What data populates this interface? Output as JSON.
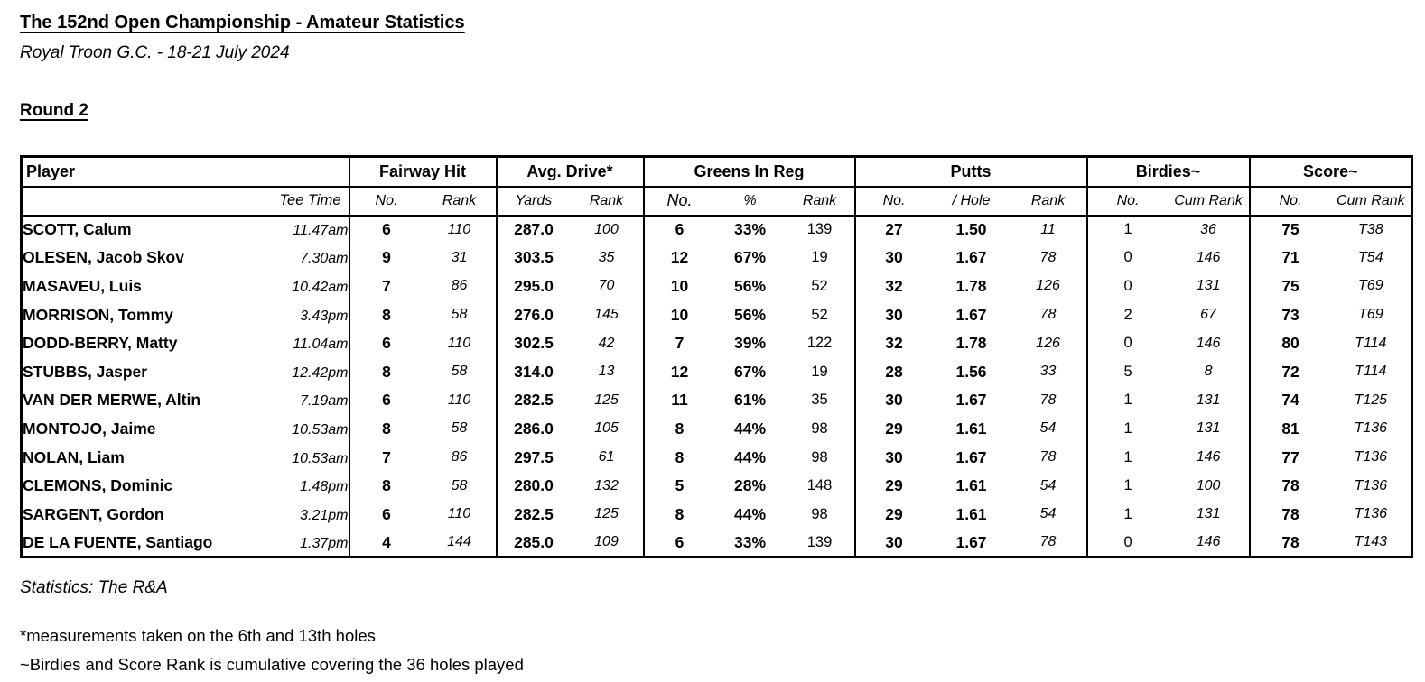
{
  "page": {
    "title": "The 152nd Open Championship - Amateur Statistics",
    "subtitle": "Royal Troon G.C. - 18-21 July 2024",
    "round_label": "Round 2",
    "source_note": "Statistics: The R&A",
    "footnote_drive": "*measurements taken on the 6th and 13th holes",
    "footnote_cumulative": "~Birdies and Score Rank is cumulative covering the 36 holes played"
  },
  "colors": {
    "text": "#000000",
    "border": "#000000",
    "background": "#ffffff"
  },
  "table": {
    "group_headers": {
      "player": "Player",
      "fairway_hit": "Fairway Hit",
      "avg_drive": "Avg. Drive*",
      "greens_in_reg": "Greens In Reg",
      "putts": "Putts",
      "birdies": "Birdies~",
      "score": "Score~"
    },
    "sub_headers": {
      "tee_time": "Tee Time",
      "fairway_no": "No.",
      "fairway_rank": "Rank",
      "drive_yards": "Yards",
      "drive_rank": "Rank",
      "gir_no": "No.",
      "gir_pct": "%",
      "gir_rank": "Rank",
      "putts_no": "No.",
      "putts_per_hole": "/ Hole",
      "putts_rank": "Rank",
      "birdies_no": "No.",
      "birdies_cum_rank": "Cum Rank",
      "score_no": "No.",
      "score_cum_rank": "Cum Rank"
    },
    "rows": [
      {
        "player": "SCOTT, Calum",
        "tee_time": "11.47am",
        "fairway_no": "6",
        "fairway_rank": "110",
        "drive_yards": "287.0",
        "drive_rank": "100",
        "gir_no": "6",
        "gir_pct": "33%",
        "gir_rank": "139",
        "putts_no": "27",
        "putts_per_hole": "1.50",
        "putts_rank": "11",
        "birdies_no": "1",
        "birdies_cum_rank": "36",
        "score_no": "75",
        "score_cum_rank": "T38"
      },
      {
        "player": "OLESEN, Jacob Skov",
        "tee_time": "7.30am",
        "fairway_no": "9",
        "fairway_rank": "31",
        "drive_yards": "303.5",
        "drive_rank": "35",
        "gir_no": "12",
        "gir_pct": "67%",
        "gir_rank": "19",
        "putts_no": "30",
        "putts_per_hole": "1.67",
        "putts_rank": "78",
        "birdies_no": "0",
        "birdies_cum_rank": "146",
        "score_no": "71",
        "score_cum_rank": "T54"
      },
      {
        "player": "MASAVEU, Luis",
        "tee_time": "10.42am",
        "fairway_no": "7",
        "fairway_rank": "86",
        "drive_yards": "295.0",
        "drive_rank": "70",
        "gir_no": "10",
        "gir_pct": "56%",
        "gir_rank": "52",
        "putts_no": "32",
        "putts_per_hole": "1.78",
        "putts_rank": "126",
        "birdies_no": "0",
        "birdies_cum_rank": "131",
        "score_no": "75",
        "score_cum_rank": "T69"
      },
      {
        "player": "MORRISON, Tommy",
        "tee_time": "3.43pm",
        "fairway_no": "8",
        "fairway_rank": "58",
        "drive_yards": "276.0",
        "drive_rank": "145",
        "gir_no": "10",
        "gir_pct": "56%",
        "gir_rank": "52",
        "putts_no": "30",
        "putts_per_hole": "1.67",
        "putts_rank": "78",
        "birdies_no": "2",
        "birdies_cum_rank": "67",
        "score_no": "73",
        "score_cum_rank": "T69"
      },
      {
        "player": "DODD-BERRY, Matty",
        "tee_time": "11.04am",
        "fairway_no": "6",
        "fairway_rank": "110",
        "drive_yards": "302.5",
        "drive_rank": "42",
        "gir_no": "7",
        "gir_pct": "39%",
        "gir_rank": "122",
        "putts_no": "32",
        "putts_per_hole": "1.78",
        "putts_rank": "126",
        "birdies_no": "0",
        "birdies_cum_rank": "146",
        "score_no": "80",
        "score_cum_rank": "T114"
      },
      {
        "player": "STUBBS, Jasper",
        "tee_time": "12.42pm",
        "fairway_no": "8",
        "fairway_rank": "58",
        "drive_yards": "314.0",
        "drive_rank": "13",
        "gir_no": "12",
        "gir_pct": "67%",
        "gir_rank": "19",
        "putts_no": "28",
        "putts_per_hole": "1.56",
        "putts_rank": "33",
        "birdies_no": "5",
        "birdies_cum_rank": "8",
        "score_no": "72",
        "score_cum_rank": "T114"
      },
      {
        "player": "VAN DER MERWE, Altin",
        "tee_time": "7.19am",
        "fairway_no": "6",
        "fairway_rank": "110",
        "drive_yards": "282.5",
        "drive_rank": "125",
        "gir_no": "11",
        "gir_pct": "61%",
        "gir_rank": "35",
        "putts_no": "30",
        "putts_per_hole": "1.67",
        "putts_rank": "78",
        "birdies_no": "1",
        "birdies_cum_rank": "131",
        "score_no": "74",
        "score_cum_rank": "T125"
      },
      {
        "player": "MONTOJO, Jaime",
        "tee_time": "10.53am",
        "fairway_no": "8",
        "fairway_rank": "58",
        "drive_yards": "286.0",
        "drive_rank": "105",
        "gir_no": "8",
        "gir_pct": "44%",
        "gir_rank": "98",
        "putts_no": "29",
        "putts_per_hole": "1.61",
        "putts_rank": "54",
        "birdies_no": "1",
        "birdies_cum_rank": "131",
        "score_no": "81",
        "score_cum_rank": "T136"
      },
      {
        "player": "NOLAN, Liam",
        "tee_time": "10.53am",
        "fairway_no": "7",
        "fairway_rank": "86",
        "drive_yards": "297.5",
        "drive_rank": "61",
        "gir_no": "8",
        "gir_pct": "44%",
        "gir_rank": "98",
        "putts_no": "30",
        "putts_per_hole": "1.67",
        "putts_rank": "78",
        "birdies_no": "1",
        "birdies_cum_rank": "146",
        "score_no": "77",
        "score_cum_rank": "T136"
      },
      {
        "player": "CLEMONS, Dominic",
        "tee_time": "1.48pm",
        "fairway_no": "8",
        "fairway_rank": "58",
        "drive_yards": "280.0",
        "drive_rank": "132",
        "gir_no": "5",
        "gir_pct": "28%",
        "gir_rank": "148",
        "putts_no": "29",
        "putts_per_hole": "1.61",
        "putts_rank": "54",
        "birdies_no": "1",
        "birdies_cum_rank": "100",
        "score_no": "78",
        "score_cum_rank": "T136"
      },
      {
        "player": "SARGENT, Gordon",
        "tee_time": "3.21pm",
        "fairway_no": "6",
        "fairway_rank": "110",
        "drive_yards": "282.5",
        "drive_rank": "125",
        "gir_no": "8",
        "gir_pct": "44%",
        "gir_rank": "98",
        "putts_no": "29",
        "putts_per_hole": "1.61",
        "putts_rank": "54",
        "birdies_no": "1",
        "birdies_cum_rank": "131",
        "score_no": "78",
        "score_cum_rank": "T136"
      },
      {
        "player": "DE LA FUENTE, Santiago",
        "tee_time": "1.37pm",
        "fairway_no": "4",
        "fairway_rank": "144",
        "drive_yards": "285.0",
        "drive_rank": "109",
        "gir_no": "6",
        "gir_pct": "33%",
        "gir_rank": "139",
        "putts_no": "30",
        "putts_per_hole": "1.67",
        "putts_rank": "78",
        "birdies_no": "0",
        "birdies_cum_rank": "146",
        "score_no": "78",
        "score_cum_rank": "T143"
      }
    ]
  }
}
